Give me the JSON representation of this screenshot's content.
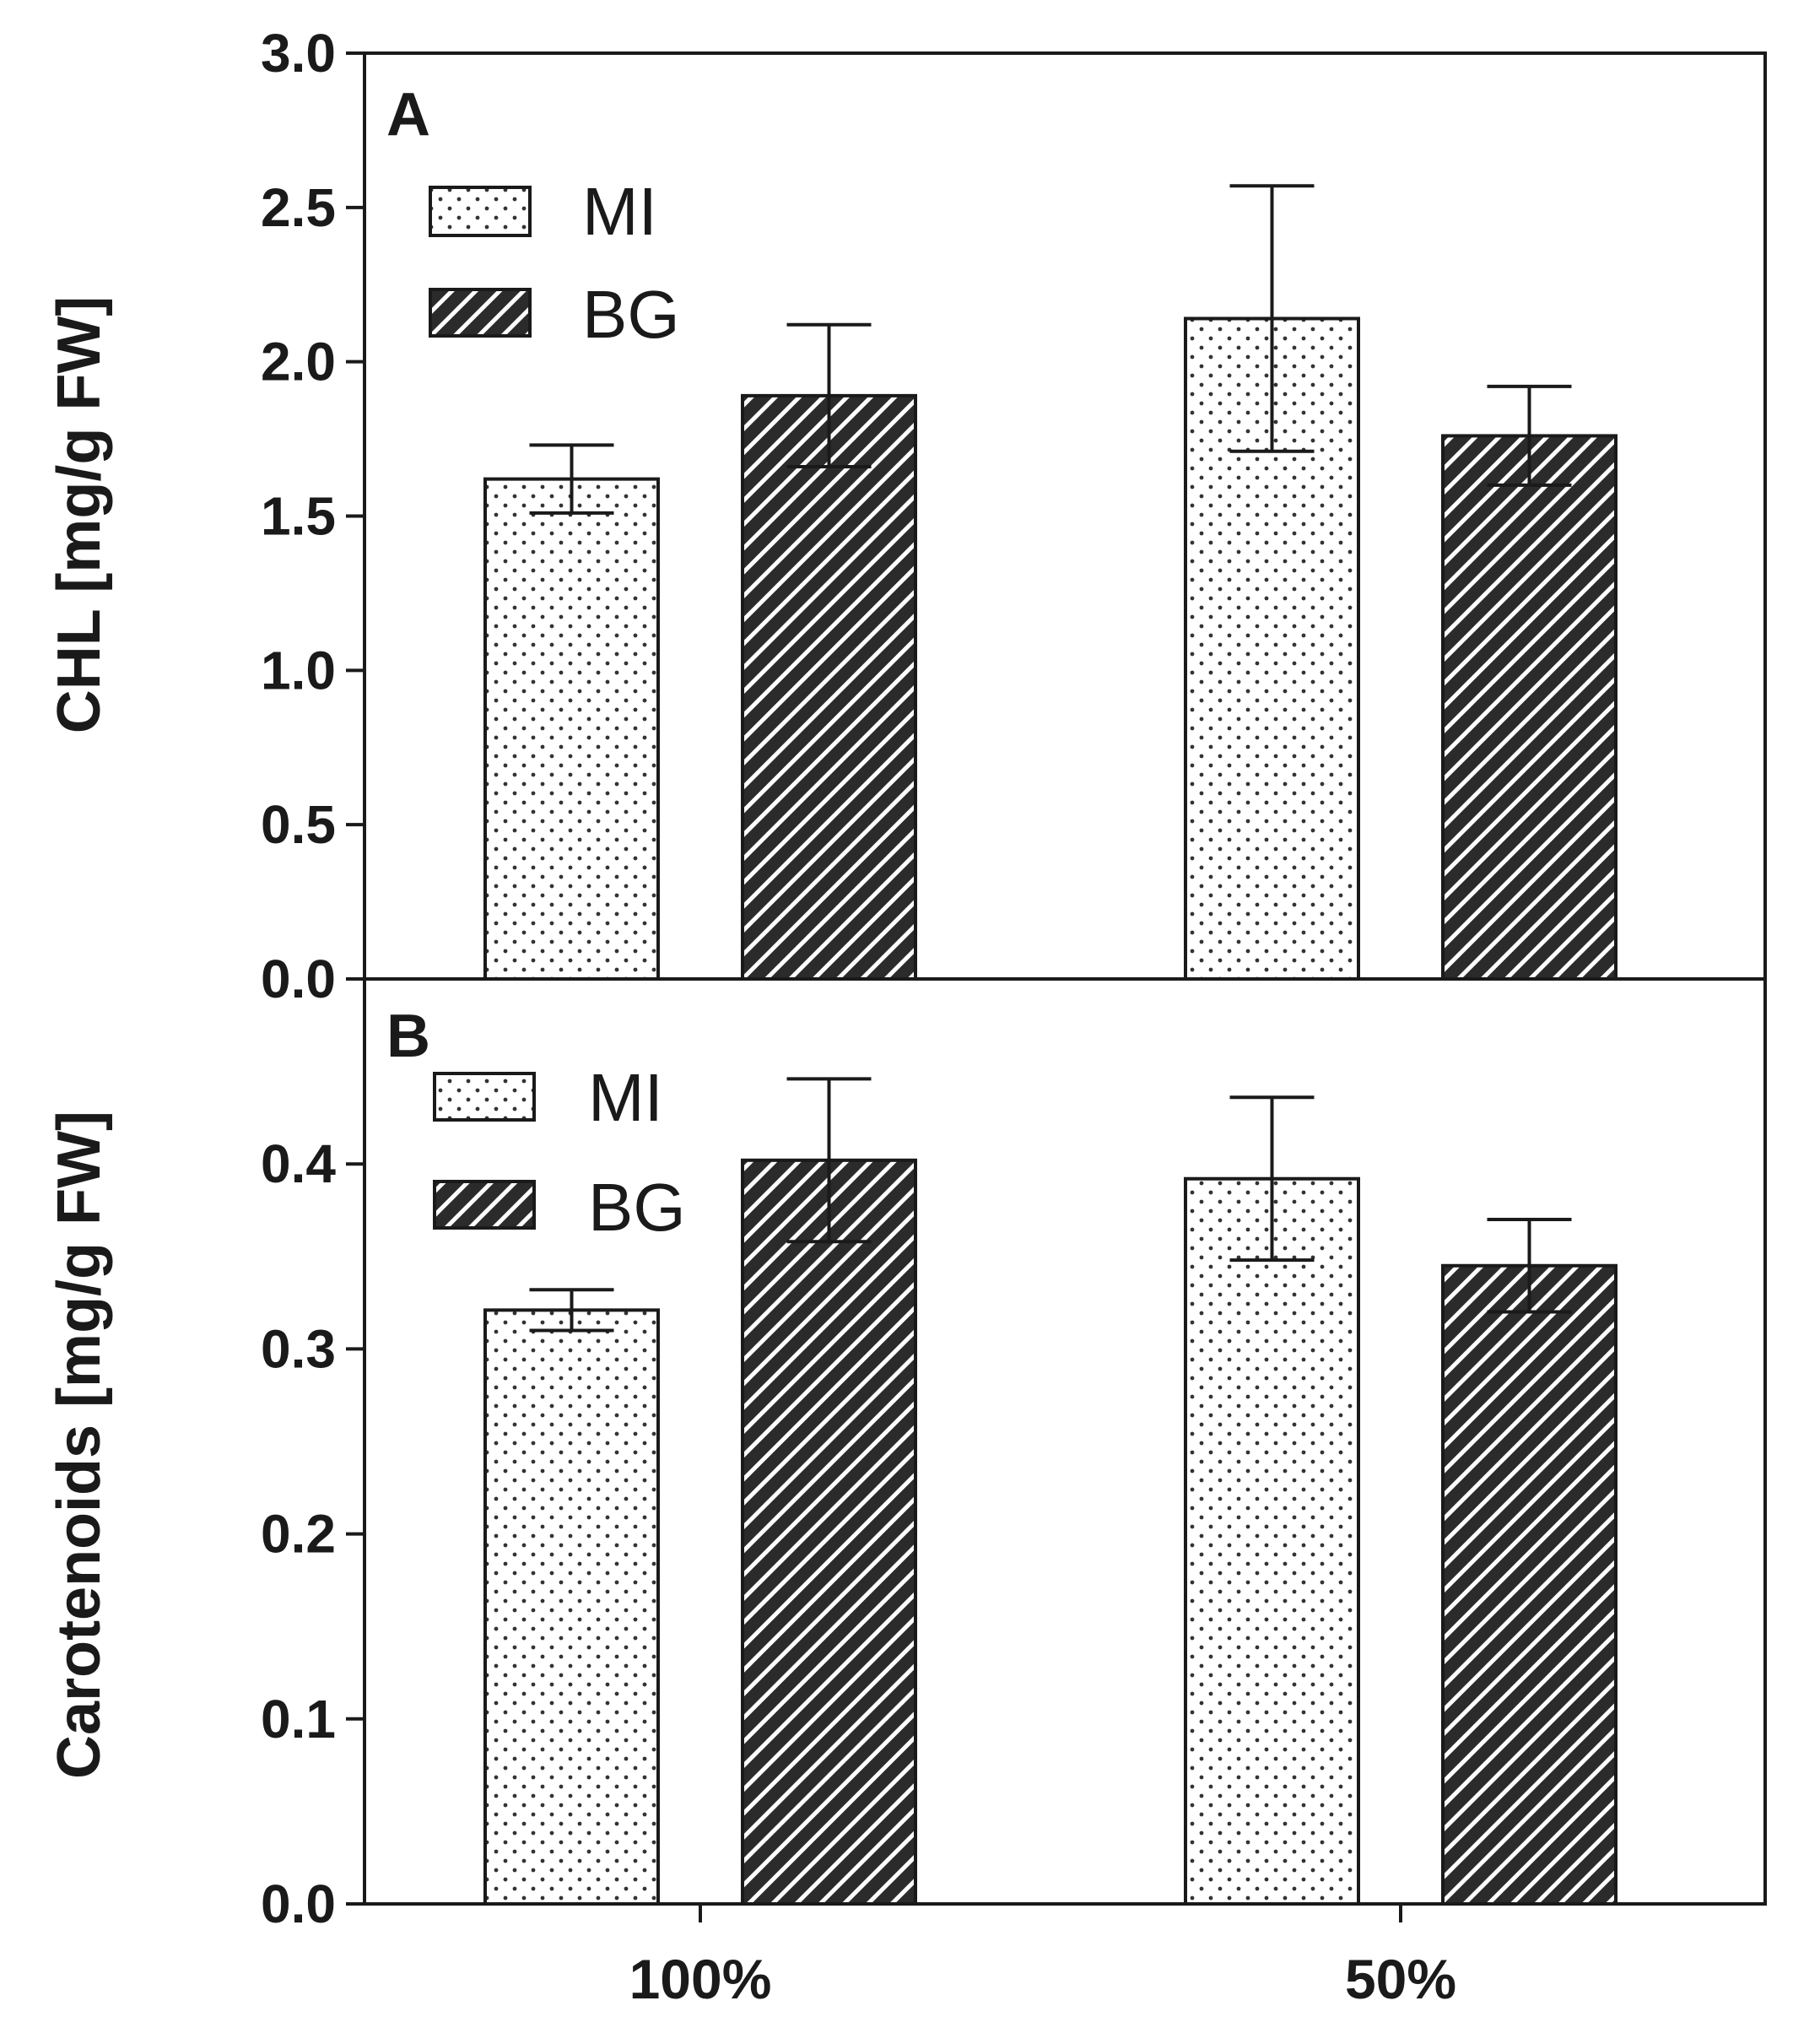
{
  "chart_data": [
    {
      "panel": "A",
      "type": "bar",
      "categories": [
        "100%",
        "50%"
      ],
      "ylabel": "CHL [mg/g FW]",
      "xlabel": "",
      "ylim": [
        0,
        3.0
      ],
      "yticks": [
        0.0,
        0.5,
        1.0,
        1.5,
        2.0,
        2.5,
        3.0
      ],
      "ytick_labels": [
        "0.0",
        "0.5",
        "1.0",
        "1.5",
        "2.0",
        "2.5",
        "3.0"
      ],
      "legend_position": "top-left",
      "series": [
        {
          "name": "MI",
          "pattern": "dots",
          "values": [
            1.62,
            2.14
          ],
          "errors": [
            0.11,
            0.43
          ]
        },
        {
          "name": "BG",
          "pattern": "hatch",
          "values": [
            1.89,
            1.76
          ],
          "errors": [
            0.23,
            0.16
          ]
        }
      ]
    },
    {
      "panel": "B",
      "type": "bar",
      "categories": [
        "100%",
        "50%"
      ],
      "ylabel": "Carotenoids [mg/g FW]",
      "xlabel": "",
      "ylim": [
        0,
        0.5
      ],
      "yticks": [
        0.0,
        0.1,
        0.2,
        0.3,
        0.4
      ],
      "ytick_labels": [
        "0.0",
        "0.1",
        "0.2",
        "0.3",
        "0.4"
      ],
      "legend_position": "top-left",
      "series": [
        {
          "name": "MI",
          "pattern": "dots",
          "values": [
            0.321,
            0.392
          ],
          "errors": [
            0.011,
            0.044
          ]
        },
        {
          "name": "BG",
          "pattern": "hatch",
          "values": [
            0.402,
            0.345
          ],
          "errors": [
            0.044,
            0.025
          ]
        }
      ]
    }
  ],
  "colors": {
    "axis": "#1a1a1a",
    "bar_fill": "#ffffff",
    "hatch_bg": "#2b2b2b",
    "hatch_line": "#ffffff",
    "dot": "#333333"
  }
}
